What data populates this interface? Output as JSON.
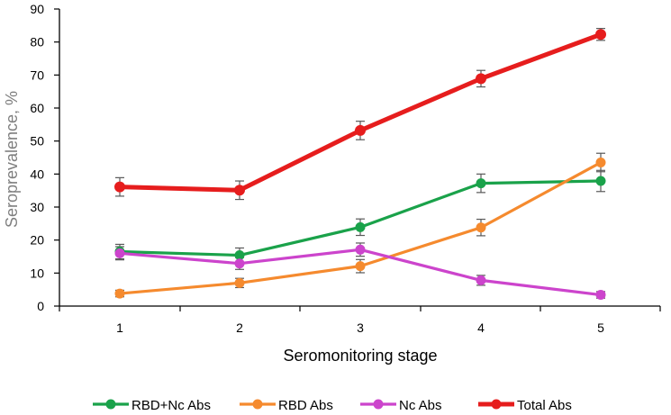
{
  "chart_data": {
    "type": "line",
    "title": "",
    "xlabel": "Seromonitoring stage",
    "ylabel": "Seroprevalence, %",
    "x": [
      1,
      2,
      3,
      4,
      5
    ],
    "xtick_labels": [
      "1",
      "2",
      "3",
      "4",
      "5"
    ],
    "ylim": [
      0,
      90
    ],
    "ytick_labels": [
      "0",
      "10",
      "20",
      "30",
      "40",
      "50",
      "60",
      "70",
      "80",
      "90"
    ],
    "yticks": [
      0,
      10,
      20,
      30,
      40,
      50,
      60,
      70,
      80,
      90
    ],
    "grid": false,
    "legend_position": "bottom",
    "series": [
      {
        "name": "RBD+Nc Abs",
        "color": "#1aa24a",
        "values": [
          16.5,
          15.4,
          23.9,
          37.2,
          37.9
        ],
        "errors": [
          2.2,
          2.2,
          2.5,
          2.8,
          3.2
        ]
      },
      {
        "name": "RBD Abs",
        "color": "#f58a2e",
        "values": [
          3.8,
          7.0,
          12.1,
          23.8,
          43.5
        ],
        "errors": [
          1.0,
          1.4,
          2.0,
          2.5,
          2.8
        ]
      },
      {
        "name": "Nc Abs",
        "color": "#cc44cc",
        "values": [
          16.0,
          12.9,
          17.1,
          7.8,
          3.4
        ],
        "errors": [
          2.0,
          1.8,
          2.0,
          1.5,
          1.0
        ]
      },
      {
        "name": "Total Abs",
        "color": "#e61d1d",
        "values": [
          36.1,
          35.1,
          53.2,
          68.9,
          82.3
        ],
        "errors": [
          2.8,
          2.8,
          2.8,
          2.5,
          1.8
        ]
      }
    ]
  }
}
